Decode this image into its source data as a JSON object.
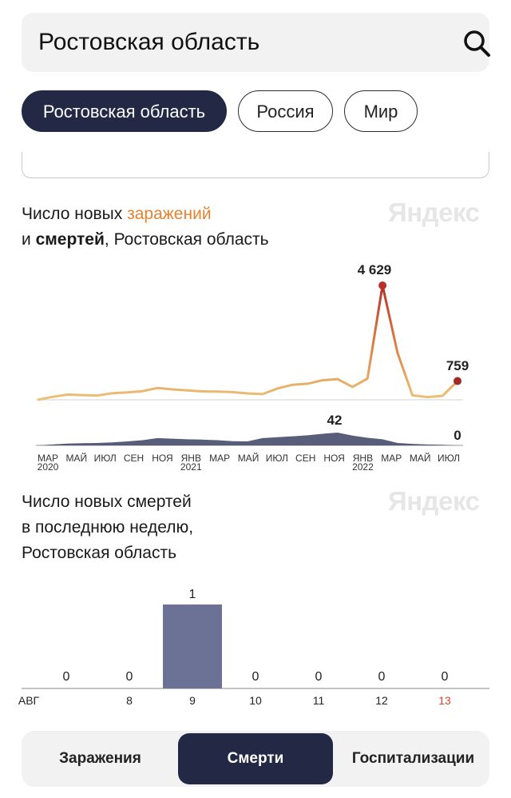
{
  "search": {
    "value": "Ростовская область"
  },
  "region_chips": [
    {
      "label": "Ростовская область",
      "active": true
    },
    {
      "label": "Россия",
      "active": false
    },
    {
      "label": "Мир",
      "active": false
    }
  ],
  "watermark": "Яндекс",
  "chart1": {
    "title_line1_a": "Число новых ",
    "title_line1_highlight": "заражений",
    "title_line2_a": "и ",
    "title_line2_bold": "смертей",
    "title_line2_b": ", Ростовская область",
    "peak_label": "4 629",
    "last_label": "759",
    "deaths_peak_label": "42",
    "deaths_last_label": "0",
    "x_ticks": [
      {
        "m": "МАР",
        "y": "2020"
      },
      {
        "m": "МАЙ",
        "y": ""
      },
      {
        "m": "ИЮЛ",
        "y": ""
      },
      {
        "m": "СЕН",
        "y": ""
      },
      {
        "m": "НОЯ",
        "y": ""
      },
      {
        "m": "ЯНВ",
        "y": "2021"
      },
      {
        "m": "МАР",
        "y": ""
      },
      {
        "m": "МАЙ",
        "y": ""
      },
      {
        "m": "ИЮЛ",
        "y": ""
      },
      {
        "m": "СЕН",
        "y": ""
      },
      {
        "m": "НОЯ",
        "y": ""
      },
      {
        "m": "ЯНВ",
        "y": "2022"
      },
      {
        "m": "МАР",
        "y": ""
      },
      {
        "m": "МАЙ",
        "y": ""
      },
      {
        "m": "ИЮЛ",
        "y": ""
      }
    ]
  },
  "chart2": {
    "title_lines": [
      "Число новых смертей",
      "в последнюю неделю,",
      "Ростовская область"
    ]
  },
  "chart_data": [
    {
      "type": "area",
      "series": [
        {
          "name": "заражений",
          "color": "#e8b86a",
          "x": [
            "2020-03",
            "2020-04",
            "2020-05",
            "2020-06",
            "2020-07",
            "2020-08",
            "2020-09",
            "2020-10",
            "2020-11",
            "2020-12",
            "2021-01",
            "2021-02",
            "2021-03",
            "2021-04",
            "2021-05",
            "2021-06",
            "2021-07",
            "2021-08",
            "2021-09",
            "2021-10",
            "2021-11",
            "2021-12",
            "2022-01",
            "2022-02",
            "2022-03",
            "2022-04",
            "2022-05",
            "2022-06",
            "2022-07"
          ],
          "values": [
            0,
            120,
            210,
            190,
            170,
            270,
            300,
            350,
            480,
            420,
            380,
            340,
            330,
            310,
            260,
            230,
            460,
            610,
            650,
            790,
            840,
            520,
            860,
            4629,
            1900,
            180,
            110,
            160,
            759
          ]
        },
        {
          "name": "смертей",
          "color": "#3b4263",
          "x": [
            "2020-03",
            "2020-04",
            "2020-05",
            "2020-06",
            "2020-07",
            "2020-08",
            "2020-09",
            "2020-10",
            "2020-11",
            "2020-12",
            "2021-01",
            "2021-02",
            "2021-03",
            "2021-04",
            "2021-05",
            "2021-06",
            "2021-07",
            "2021-08",
            "2021-09",
            "2021-10",
            "2021-11",
            "2021-12",
            "2022-01",
            "2022-02",
            "2022-03",
            "2022-04",
            "2022-05",
            "2022-06",
            "2022-07"
          ],
          "values": [
            0,
            3,
            6,
            7,
            8,
            10,
            13,
            17,
            24,
            22,
            20,
            19,
            17,
            14,
            13,
            24,
            27,
            30,
            33,
            38,
            42,
            32,
            25,
            20,
            8,
            5,
            3,
            2,
            0
          ]
        }
      ]
    },
    {
      "type": "bar",
      "categories": [
        "АВГ",
        "8",
        "9",
        "10",
        "11",
        "12",
        "13"
      ],
      "values": [
        0,
        0,
        1,
        0,
        0,
        0,
        0
      ],
      "value_labels": [
        "0",
        "0",
        "1",
        "0",
        "0",
        "0",
        "0"
      ],
      "bar_color": "#6b7296",
      "highlight_category_color": "#d9442c"
    }
  ],
  "bottom_tabs": [
    {
      "label": "Заражения",
      "active": false
    },
    {
      "label": "Смерти",
      "active": true
    },
    {
      "label": "Госпитализации",
      "active": false
    }
  ]
}
